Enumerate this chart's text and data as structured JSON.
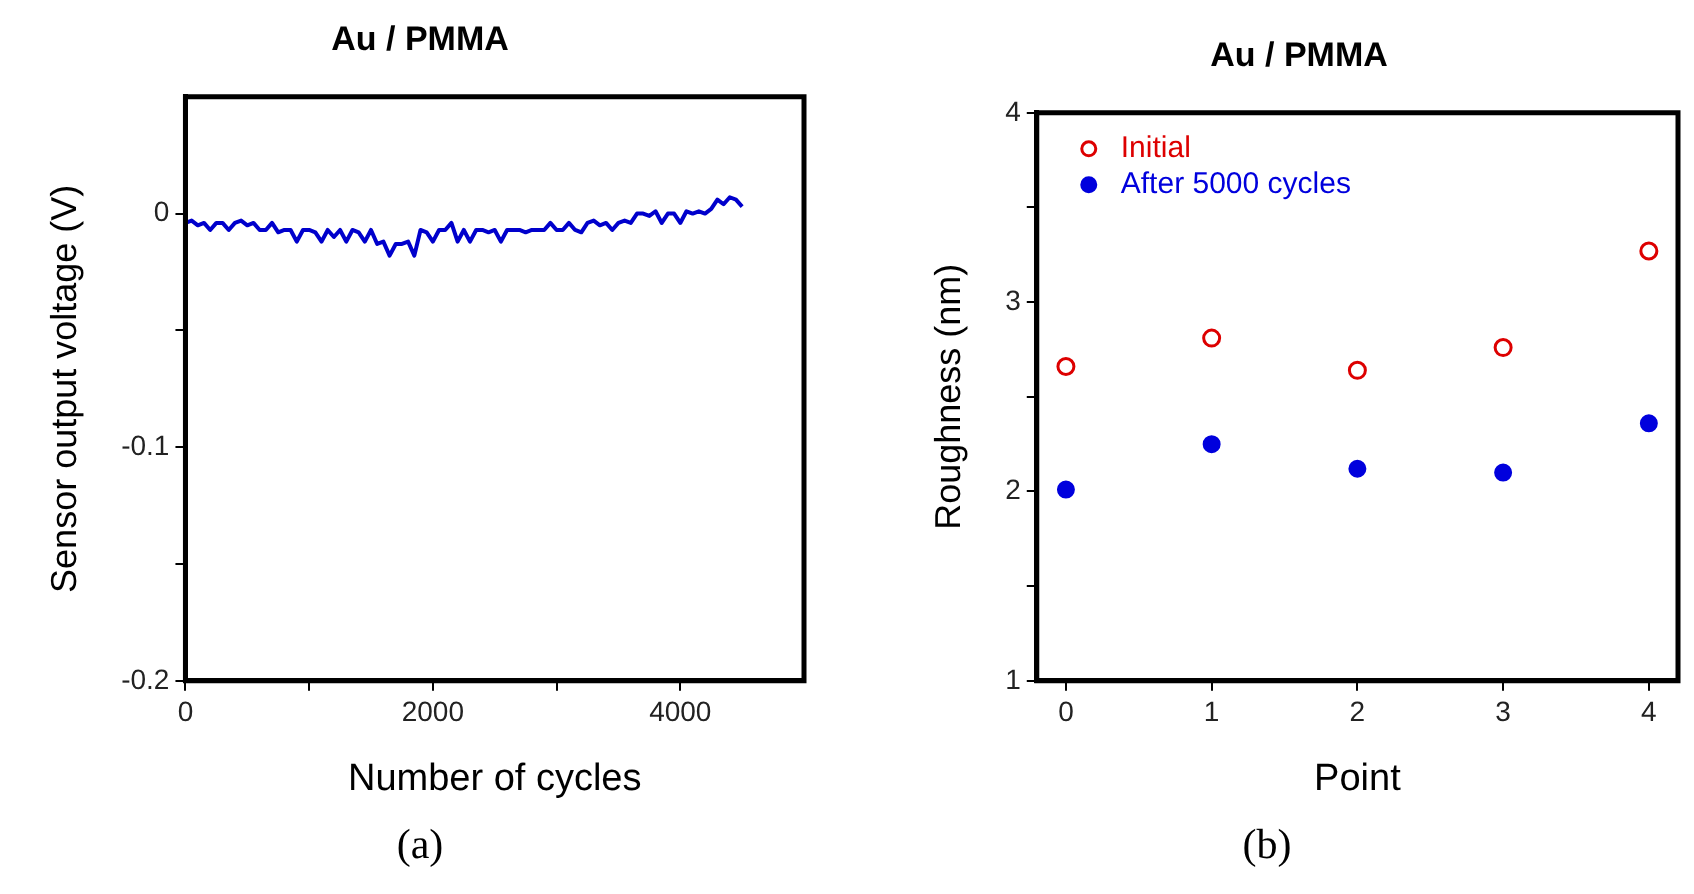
{
  "chart_data": [
    {
      "type": "line",
      "title": "Au / PMMA",
      "xlabel": "Number of cycles",
      "ylabel": "Sensor output voltage (V)",
      "annotations": [
        "(a)"
      ],
      "x": [
        0,
        50,
        100,
        150,
        200,
        250,
        300,
        350,
        400,
        450,
        500,
        550,
        600,
        650,
        700,
        750,
        800,
        850,
        900,
        950,
        1000,
        1050,
        1100,
        1150,
        1200,
        1250,
        1300,
        1350,
        1400,
        1450,
        1500,
        1550,
        1600,
        1650,
        1700,
        1750,
        1800,
        1850,
        1900,
        1950,
        2000,
        2050,
        2100,
        2150,
        2200,
        2250,
        2300,
        2350,
        2400,
        2450,
        2500,
        2550,
        2600,
        2650,
        2700,
        2750,
        2800,
        2850,
        2900,
        2950,
        3000,
        3050,
        3100,
        3150,
        3200,
        3250,
        3300,
        3350,
        3400,
        3450,
        3500,
        3550,
        3600,
        3650,
        3700,
        3750,
        3800,
        3850,
        3900,
        3950,
        4000,
        4050,
        4100,
        4150,
        4200,
        4250,
        4300,
        4350,
        4400,
        4450,
        4500
      ],
      "series": [
        {
          "color": "#0000cc",
          "values": [
            -0.004,
            -0.003,
            -0.005,
            -0.004,
            -0.007,
            -0.004,
            -0.004,
            -0.007,
            -0.004,
            -0.003,
            -0.005,
            -0.004,
            -0.007,
            -0.007,
            -0.004,
            -0.008,
            -0.007,
            -0.007,
            -0.012,
            -0.007,
            -0.007,
            -0.008,
            -0.012,
            -0.007,
            -0.01,
            -0.007,
            -0.012,
            -0.007,
            -0.008,
            -0.012,
            -0.007,
            -0.013,
            -0.012,
            -0.018,
            -0.013,
            -0.013,
            -0.012,
            -0.018,
            -0.007,
            -0.008,
            -0.012,
            -0.007,
            -0.007,
            -0.004,
            -0.012,
            -0.007,
            -0.012,
            -0.007,
            -0.007,
            -0.008,
            -0.007,
            -0.012,
            -0.007,
            -0.007,
            -0.007,
            -0.008,
            -0.007,
            -0.007,
            -0.007,
            -0.004,
            -0.007,
            -0.007,
            -0.004,
            -0.007,
            -0.008,
            -0.004,
            -0.003,
            -0.005,
            -0.004,
            -0.007,
            -0.004,
            -0.003,
            -0.004,
            0,
            0,
            -0.001,
            0.001,
            -0.004,
            0,
            0,
            -0.004,
            0.001,
            0,
            0.001,
            0,
            0.002,
            0.006,
            0.004,
            0.007,
            0.006,
            0.003
          ]
        }
      ],
      "xlim": [
        0,
        5000
      ],
      "xticks": [
        0,
        {
          "value": 1000,
          "label": null
        },
        2000,
        {
          "value": 3000,
          "label": null
        },
        4000
      ],
      "ylim": [
        -0.2,
        0.05
      ],
      "yticks": [
        -0.2,
        {
          "value": -0.15,
          "label": null
        },
        -0.1,
        {
          "value": -0.05,
          "label": null
        },
        0
      ],
      "grid": false,
      "legend": false,
      "marker": "none",
      "line_style": "solid"
    },
    {
      "type": "scatter",
      "title": "Au / PMMA",
      "xlabel": "Point",
      "ylabel": "Roughness (nm)",
      "annotations": [
        "(b)"
      ],
      "x": [
        0,
        1,
        2,
        3,
        4
      ],
      "series": [
        {
          "name": "Initial",
          "color": "#dd0000",
          "values": [
            2.66,
            2.81,
            2.64,
            2.76,
            3.27
          ]
        },
        {
          "name": "After 5000 cycles",
          "color": "#0000dd",
          "values": [
            2.01,
            2.25,
            2.12,
            2.1,
            2.36
          ]
        }
      ],
      "xlim": [
        -0.2,
        4.2
      ],
      "xticks": [
        0,
        1,
        2,
        3,
        4
      ],
      "ylim": [
        1,
        4
      ],
      "yticks": [
        1,
        {
          "value": 1.5,
          "label": null
        },
        2,
        {
          "value": 2.5,
          "label": null
        },
        3,
        {
          "value": 3.5,
          "label": null
        },
        4
      ],
      "grid": false,
      "legend": "top left",
      "marker": "circle"
    }
  ]
}
